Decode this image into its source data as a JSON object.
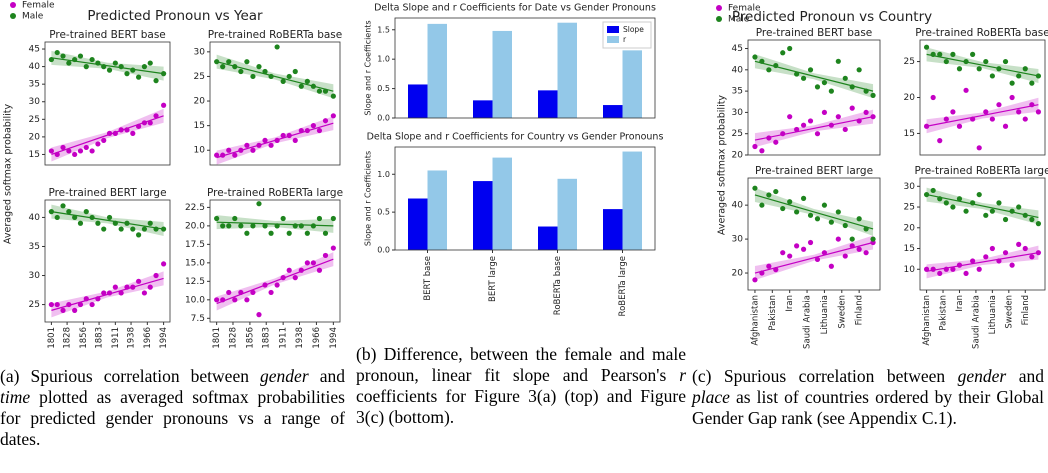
{
  "panels": [
    {
      "title": "Predicted Pronoun vs Year",
      "ylabel": "Averaged softmax probability"
    },
    {
      "title": "Predicted Pronoun vs Country",
      "ylabel": "Averaged softmax probability"
    }
  ],
  "captions": [
    [
      "(a) Spurious correlation between ",
      "gender",
      " and ",
      "time",
      " plotted as averaged softmax probabilities for predicted gender pronouns vs a range of dates."
    ],
    [
      "(b) Difference, between the female and male pronoun, linear fit slope and Pearson's ",
      "r",
      " coefficients for Figure 3(a) (top) and Figure 3(c) (bottom)."
    ],
    [
      "(c) Spurious correlation between ",
      "gender",
      " and ",
      "place",
      " as list of countries ordered by their Global Gender Gap rank (see Appendix C.1)."
    ]
  ],
  "chart_data": [
    {
      "type": "scatter",
      "title": "Pre-trained BERT base",
      "xlim": [
        1790,
        2005
      ],
      "ylim": [
        12,
        47
      ],
      "yticks": [
        15,
        20,
        25,
        30,
        35,
        40,
        45
      ],
      "series": [
        {
          "name": "Female",
          "color": "#c400c4",
          "x": [
            1801,
            1811,
            1821,
            1831,
            1841,
            1851,
            1861,
            1871,
            1881,
            1891,
            1901,
            1911,
            1921,
            1931,
            1941,
            1951,
            1961,
            1971,
            1981,
            1994
          ],
          "values": [
            16,
            15,
            17,
            16,
            15,
            16,
            17,
            16,
            18,
            19,
            21,
            21,
            22,
            22,
            21,
            23,
            24,
            24,
            26,
            29
          ],
          "fit": [
            15,
            26
          ]
        },
        {
          "name": "Male",
          "color": "#1e841e",
          "x": [
            1801,
            1811,
            1821,
            1831,
            1841,
            1851,
            1861,
            1871,
            1881,
            1891,
            1901,
            1911,
            1921,
            1931,
            1941,
            1951,
            1961,
            1971,
            1981,
            1994
          ],
          "values": [
            42,
            44,
            43,
            41,
            42,
            43,
            40,
            42,
            41,
            40,
            39,
            41,
            40,
            38,
            39,
            37,
            40,
            41,
            36,
            38
          ],
          "fit": [
            42.5,
            38
          ]
        }
      ]
    },
    {
      "type": "scatter",
      "title": "Pre-trained RoBERTa base",
      "xlim": [
        1790,
        2005
      ],
      "ylim": [
        7,
        32
      ],
      "yticks": [
        10,
        15,
        20,
        25,
        30
      ],
      "series": [
        {
          "color": "#c400c4",
          "x": [
            1801,
            1811,
            1821,
            1831,
            1841,
            1851,
            1861,
            1871,
            1881,
            1891,
            1901,
            1911,
            1921,
            1931,
            1941,
            1951,
            1961,
            1971,
            1981,
            1994
          ],
          "values": [
            9,
            9,
            10,
            9,
            10,
            11,
            10,
            11,
            12,
            11,
            12,
            13,
            13,
            12,
            14,
            14,
            15,
            14,
            16,
            17
          ],
          "fit": [
            8.5,
            15.5
          ]
        },
        {
          "color": "#1e841e",
          "x": [
            1801,
            1811,
            1821,
            1831,
            1841,
            1851,
            1861,
            1871,
            1881,
            1891,
            1901,
            1911,
            1921,
            1931,
            1941,
            1951,
            1961,
            1971,
            1981,
            1994
          ],
          "values": [
            28,
            27,
            28,
            27,
            26,
            28,
            25,
            27,
            26,
            25,
            31,
            24,
            25,
            26,
            23,
            24,
            23,
            22,
            22,
            21
          ],
          "fit": [
            28,
            22
          ]
        }
      ]
    },
    {
      "type": "scatter",
      "title": "Pre-trained BERT large",
      "xlim": [
        1790,
        2005
      ],
      "ylim": [
        22,
        43
      ],
      "yticks": [
        25,
        30,
        35,
        40
      ],
      "xticks": [
        1801,
        1828,
        1856,
        1883,
        1911,
        1938,
        1966,
        1994
      ],
      "series": [
        {
          "color": "#c400c4",
          "x": [
            1801,
            1811,
            1821,
            1831,
            1841,
            1851,
            1861,
            1871,
            1881,
            1891,
            1901,
            1911,
            1921,
            1931,
            1941,
            1951,
            1961,
            1971,
            1981,
            1994
          ],
          "values": [
            25,
            25,
            24,
            25,
            24,
            25,
            26,
            25,
            26,
            27,
            27,
            28,
            27,
            28,
            28,
            29,
            27,
            28,
            30,
            32
          ],
          "fit": [
            24,
            29.5
          ]
        },
        {
          "color": "#1e841e",
          "x": [
            1801,
            1811,
            1821,
            1831,
            1841,
            1851,
            1861,
            1871,
            1881,
            1891,
            1901,
            1911,
            1921,
            1931,
            1941,
            1951,
            1961,
            1971,
            1981,
            1994
          ],
          "values": [
            41,
            40,
            42,
            41,
            40,
            39,
            41,
            40,
            39,
            38,
            40,
            39,
            38,
            39,
            38,
            37,
            38,
            39,
            38,
            38
          ],
          "fit": [
            41,
            38
          ]
        }
      ]
    },
    {
      "type": "scatter",
      "title": "Pre-trained RoBERTa large",
      "xlim": [
        1790,
        2005
      ],
      "ylim": [
        7,
        23.5
      ],
      "yticks": [
        7.5,
        {
          "value": 10,
          "label": "10.0"
        },
        12.5,
        {
          "value": 15,
          "label": "15.0"
        },
        17.5,
        {
          "value": 20,
          "label": "20.0"
        },
        22.5
      ],
      "xticks": [
        1801,
        1828,
        1856,
        1883,
        1911,
        1938,
        1966,
        1994
      ],
      "series": [
        {
          "color": "#c400c4",
          "x": [
            1801,
            1811,
            1821,
            1831,
            1841,
            1851,
            1861,
            1871,
            1881,
            1891,
            1901,
            1911,
            1921,
            1931,
            1941,
            1951,
            1961,
            1971,
            1981,
            1994
          ],
          "values": [
            10,
            10,
            11,
            10,
            11,
            10,
            11,
            8,
            12,
            11,
            12,
            13,
            14,
            13,
            14,
            15,
            15,
            14,
            16,
            17
          ],
          "fit": [
            9.5,
            15.5
          ]
        },
        {
          "color": "#1e841e",
          "x": [
            1801,
            1811,
            1821,
            1831,
            1841,
            1851,
            1861,
            1871,
            1881,
            1891,
            1901,
            1911,
            1921,
            1931,
            1941,
            1951,
            1961,
            1971,
            1981,
            1994
          ],
          "values": [
            21,
            20,
            20,
            21,
            20,
            19,
            20,
            23,
            20,
            19,
            20,
            21,
            19,
            20,
            20,
            19,
            20,
            21,
            19,
            21
          ],
          "fit": [
            20.5,
            20
          ]
        }
      ]
    },
    {
      "type": "bar",
      "title": "Delta Slope and r Coefficients for Date vs Gender Pronouns",
      "ylabel": "Slope and r Coefficients",
      "ylim": [
        0,
        1.7
      ],
      "yticks": [
        {
          "value": 0,
          "label": "0.0"
        },
        0.5,
        {
          "value": 1,
          "label": "1.0"
        },
        1.5
      ],
      "legend": "upper right",
      "series": [
        {
          "name": "Slope",
          "color": "#0000f0",
          "values": [
            0.57,
            0.3,
            0.47,
            0.22
          ]
        },
        {
          "name": "r",
          "color": "#93c8e8",
          "values": [
            1.6,
            1.48,
            1.62,
            1.15
          ]
        }
      ]
    },
    {
      "type": "bar",
      "title": "Delta Slope and r Coefficients for Country vs Gender Pronouns",
      "ylabel": "Slope and r Coefficients",
      "ylim": [
        0,
        1.36
      ],
      "yticks": [
        {
          "value": 0,
          "label": "0.0"
        },
        0.5,
        {
          "value": 1,
          "label": "1.0"
        }
      ],
      "categories": [
        "BERT base",
        "BERT large",
        "RoBERTa base",
        "RoBERTa large"
      ],
      "series": [
        {
          "color": "#0000f0",
          "values": [
            0.68,
            0.91,
            0.31,
            0.54
          ]
        },
        {
          "color": "#93c8e8",
          "values": [
            1.05,
            1.22,
            0.94,
            1.3
          ]
        }
      ]
    },
    {
      "type": "scatter",
      "title": "Pre-trained BERT base",
      "xlim": [
        -2,
        36
      ],
      "ylim": [
        20,
        47
      ],
      "yticks": [
        20,
        25,
        30,
        35,
        40,
        45
      ],
      "series": [
        {
          "name": "Female",
          "color": "#c400c4",
          "x": [
            0,
            2,
            4,
            6,
            8,
            10,
            12,
            14,
            16,
            18,
            20,
            22,
            24,
            26,
            28,
            30,
            32,
            34
          ],
          "values": [
            22,
            21,
            24,
            23,
            25,
            29,
            26,
            27,
            28,
            25,
            30,
            27,
            29,
            26,
            31,
            28,
            30,
            29
          ],
          "fit": [
            23.5,
            29
          ]
        },
        {
          "name": "Male",
          "color": "#1e841e",
          "x": [
            0,
            2,
            4,
            6,
            8,
            10,
            12,
            14,
            16,
            18,
            20,
            22,
            24,
            26,
            28,
            30,
            32,
            34
          ],
          "values": [
            43,
            42,
            40,
            41,
            44,
            45,
            39,
            38,
            40,
            36,
            37,
            35,
            42,
            38,
            36,
            40,
            35,
            34
          ],
          "fit": [
            42,
            35
          ]
        }
      ]
    },
    {
      "type": "scatter",
      "title": "Pre-trained RoBERTa base",
      "xlim": [
        -2,
        36
      ],
      "ylim": [
        12,
        28
      ],
      "yticks": [
        15,
        20,
        25
      ],
      "series": [
        {
          "color": "#c400c4",
          "x": [
            0,
            2,
            4,
            6,
            8,
            10,
            12,
            14,
            16,
            18,
            20,
            22,
            24,
            26,
            28,
            30,
            32,
            34
          ],
          "values": [
            16,
            20,
            14,
            17,
            18,
            16,
            21,
            17,
            13,
            18,
            17,
            19,
            16,
            20,
            18,
            17,
            19,
            18
          ],
          "fit": [
            16,
            19
          ]
        },
        {
          "color": "#1e841e",
          "x": [
            0,
            2,
            4,
            6,
            8,
            10,
            12,
            14,
            16,
            18,
            20,
            22,
            24,
            26,
            28,
            30,
            32,
            34
          ],
          "values": [
            27,
            26,
            26,
            25,
            26,
            24,
            25,
            26,
            24,
            25,
            23,
            24,
            25,
            22,
            23,
            24,
            22,
            23
          ],
          "fit": [
            26,
            23
          ]
        }
      ]
    },
    {
      "type": "scatter",
      "title": "Pre-trained BERT large",
      "xlim": [
        -2,
        36
      ],
      "ylim": [
        15,
        48
      ],
      "yticks": [
        20,
        30,
        40
      ],
      "xticks": [
        {
          "value": 0,
          "label": "Afghanistan"
        },
        {
          "value": 5,
          "label": "Pakistan"
        },
        {
          "value": 10,
          "label": "Iran"
        },
        {
          "value": 15,
          "label": "Saudi Arabia"
        },
        {
          "value": 20,
          "label": "Lithuania"
        },
        {
          "value": 25,
          "label": "Sweden"
        },
        {
          "value": 30,
          "label": "Finland"
        }
      ],
      "series": [
        {
          "color": "#c400c4",
          "x": [
            0,
            2,
            4,
            6,
            8,
            10,
            12,
            14,
            16,
            18,
            20,
            22,
            24,
            26,
            28,
            30,
            32,
            34
          ],
          "values": [
            18,
            20,
            22,
            21,
            26,
            25,
            28,
            27,
            29,
            24,
            26,
            22,
            30,
            25,
            28,
            27,
            26,
            29
          ],
          "fit": [
            20,
            29
          ]
        },
        {
          "color": "#1e841e",
          "x": [
            0,
            2,
            4,
            6,
            8,
            10,
            12,
            14,
            16,
            18,
            20,
            22,
            24,
            26,
            28,
            30,
            32,
            34
          ],
          "values": [
            45,
            40,
            43,
            44,
            39,
            41,
            38,
            42,
            37,
            36,
            40,
            35,
            38,
            34,
            30,
            36,
            33,
            30
          ],
          "fit": [
            43,
            33
          ]
        }
      ]
    },
    {
      "type": "scatter",
      "title": "Pre-trained RoBERTa large",
      "xlim": [
        -2,
        36
      ],
      "ylim": [
        5,
        32
      ],
      "yticks": [
        10,
        15,
        20,
        25,
        30
      ],
      "xticks": [
        {
          "value": 0,
          "label": "Afghanistan"
        },
        {
          "value": 5,
          "label": "Pakistan"
        },
        {
          "value": 10,
          "label": "Iran"
        },
        {
          "value": 15,
          "label": "Saudi Arabia"
        },
        {
          "value": 20,
          "label": "Lithuania"
        },
        {
          "value": 25,
          "label": "Sweden"
        },
        {
          "value": 30,
          "label": "Finland"
        }
      ],
      "series": [
        {
          "color": "#c400c4",
          "x": [
            0,
            2,
            4,
            6,
            8,
            10,
            12,
            14,
            16,
            18,
            20,
            22,
            24,
            26,
            28,
            30,
            32,
            34
          ],
          "values": [
            10,
            10,
            9,
            10,
            10,
            11,
            9,
            12,
            10,
            13,
            15,
            12,
            14,
            11,
            16,
            15,
            13,
            14
          ],
          "fit": [
            9.5,
            14
          ]
        },
        {
          "color": "#1e841e",
          "x": [
            0,
            2,
            4,
            6,
            8,
            10,
            12,
            14,
            16,
            18,
            20,
            22,
            24,
            26,
            28,
            30,
            32,
            34
          ],
          "values": [
            28,
            29,
            27,
            26,
            25,
            27,
            24,
            26,
            28,
            23,
            24,
            26,
            22,
            24,
            25,
            23,
            22,
            21
          ],
          "fit": [
            28,
            22.5
          ]
        }
      ]
    }
  ]
}
